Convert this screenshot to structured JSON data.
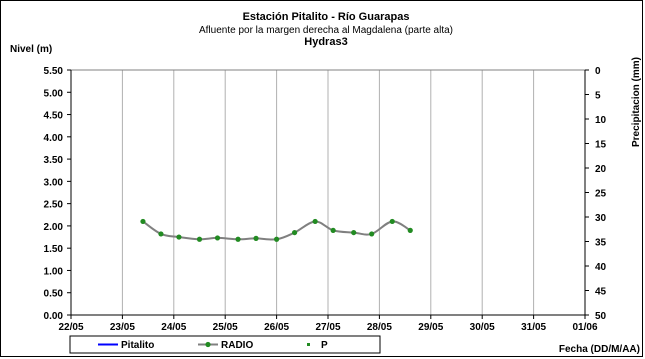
{
  "chart_data": {
    "type": "line",
    "title": "Estación Pitalito  - Río Guarapas",
    "subtitle": "Afluente por la margen derecha al Magdalena (parte alta)",
    "subtitle2": "Hydras3",
    "ylabel": "Nivel (m)",
    "y2label": "Precipitacion (mm)",
    "xlabel": "Fecha (DD/M/AA)",
    "x_ticks": [
      "22/05",
      "23/05",
      "24/05",
      "25/05",
      "26/05",
      "27/05",
      "28/05",
      "29/05",
      "30/05",
      "31/05",
      "01/06"
    ],
    "ylim": [
      0,
      5.5
    ],
    "y_ticks": [
      "0.00",
      "0.50",
      "1.00",
      "1.50",
      "2.00",
      "2.50",
      "3.00",
      "3.50",
      "4.00",
      "4.50",
      "5.00",
      "5.50"
    ],
    "y2lim": [
      0,
      50
    ],
    "y2_ticks": [
      "0",
      "5",
      "10",
      "15",
      "20",
      "25",
      "30",
      "35",
      "40",
      "45",
      "50"
    ],
    "y2_inverted": true,
    "grid": "vertical",
    "legend_position": "bottom",
    "series": [
      {
        "name": "Pitalito",
        "color": "#0000ff",
        "style": "line",
        "x": [],
        "values": []
      },
      {
        "name": "RADIO",
        "color": "#808080",
        "marker_color": "#228b22",
        "style": "line-marker",
        "x": [
          1.4,
          1.75,
          2.1,
          2.5,
          2.85,
          3.25,
          3.6,
          4.0,
          4.35,
          4.75,
          5.1,
          5.5,
          5.85,
          6.25,
          6.6,
          7.0,
          7.4
        ],
        "values": [
          2.1,
          1.82,
          1.75,
          1.7,
          1.73,
          1.7,
          1.72,
          1.7,
          1.85,
          2.1,
          1.9,
          1.85,
          1.82,
          2.1,
          1.9,
          null,
          null
        ]
      },
      {
        "name": "P",
        "color": "#228b22",
        "style": "marker",
        "x": [],
        "values": []
      }
    ]
  }
}
